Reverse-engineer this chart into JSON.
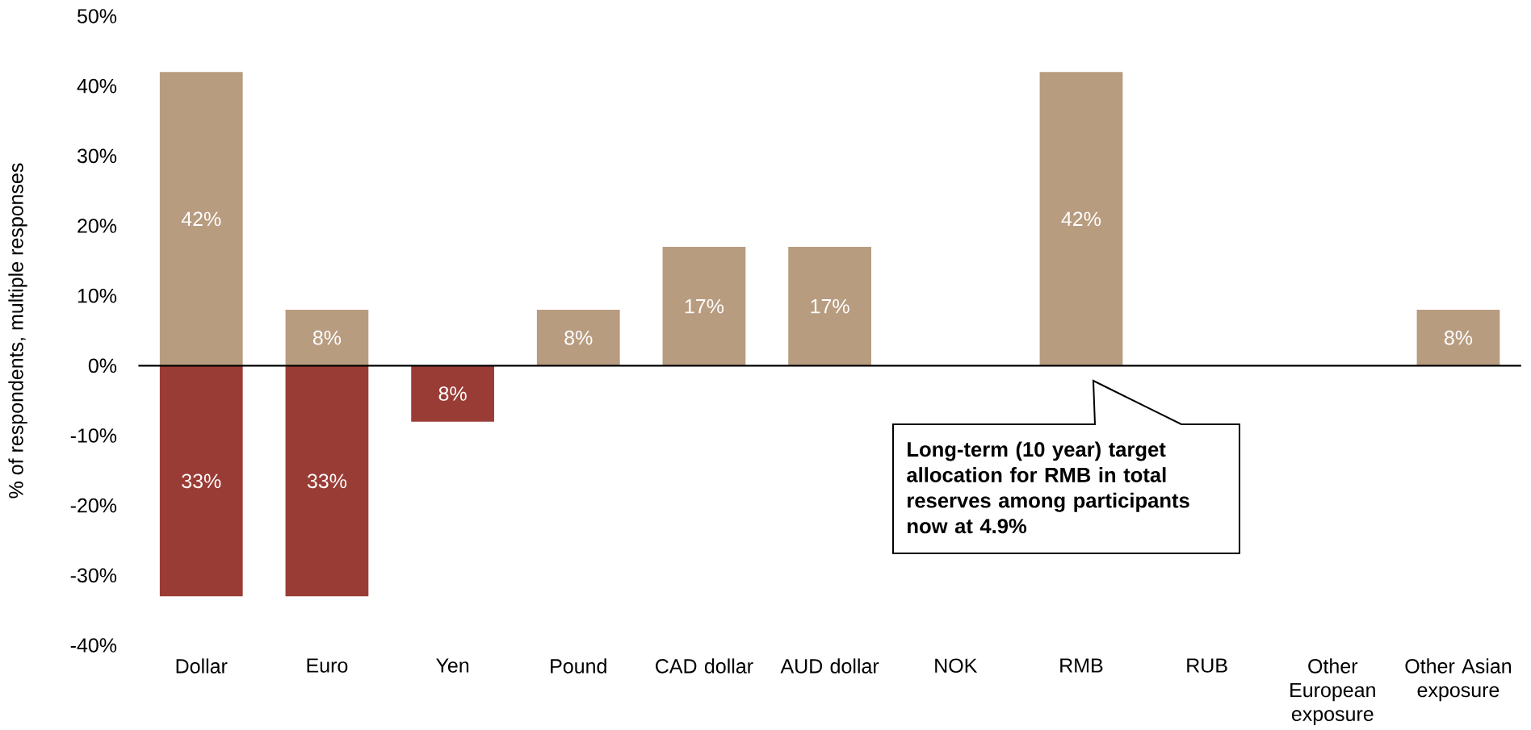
{
  "chart_data": {
    "type": "bar",
    "ylabel": "% of respondents, multiple responses",
    "categories": [
      "Dollar",
      "Euro",
      "Yen",
      "Pound",
      "CAD dollar",
      "AUD dollar",
      "NOK",
      "RMB",
      "RUB",
      "Other European exposure",
      "Other Asian exposure"
    ],
    "series": [
      {
        "color": "#b89c80",
        "values": [
          42,
          8,
          null,
          8,
          17,
          17,
          null,
          42,
          null,
          null,
          8
        ],
        "value_labels": [
          "42%",
          "8%",
          null,
          "8%",
          "17%",
          "17%",
          null,
          "42%",
          null,
          null,
          "8%"
        ]
      },
      {
        "color": "#9a3c36",
        "base": [
          -33,
          -33,
          -8,
          null,
          null,
          null,
          null,
          null,
          null,
          null,
          null
        ],
        "values": [
          33,
          33,
          8,
          null,
          null,
          null,
          null,
          null,
          null,
          null,
          null
        ],
        "value_labels": [
          "33%",
          "33%",
          "8%",
          null,
          null,
          null,
          null,
          null,
          null,
          null,
          null
        ]
      }
    ],
    "ylim": [
      -40,
      50
    ],
    "yticks": [
      {
        "value": -40,
        "label": "-40%"
      },
      {
        "value": -30,
        "label": "-30%"
      },
      {
        "value": -20,
        "label": "-20%"
      },
      {
        "value": -10,
        "label": "-10%"
      },
      {
        "value": 0,
        "label": "0%"
      },
      {
        "value": 10,
        "label": "10%"
      },
      {
        "value": 20,
        "label": "20%"
      },
      {
        "value": 30,
        "label": "30%"
      },
      {
        "value": 40,
        "label": "40%"
      },
      {
        "value": 50,
        "label": "50%"
      }
    ],
    "annotations": [
      "Long-term (10 year) target allocation for RMB in total reserves among participants now at 4.9%"
    ]
  }
}
